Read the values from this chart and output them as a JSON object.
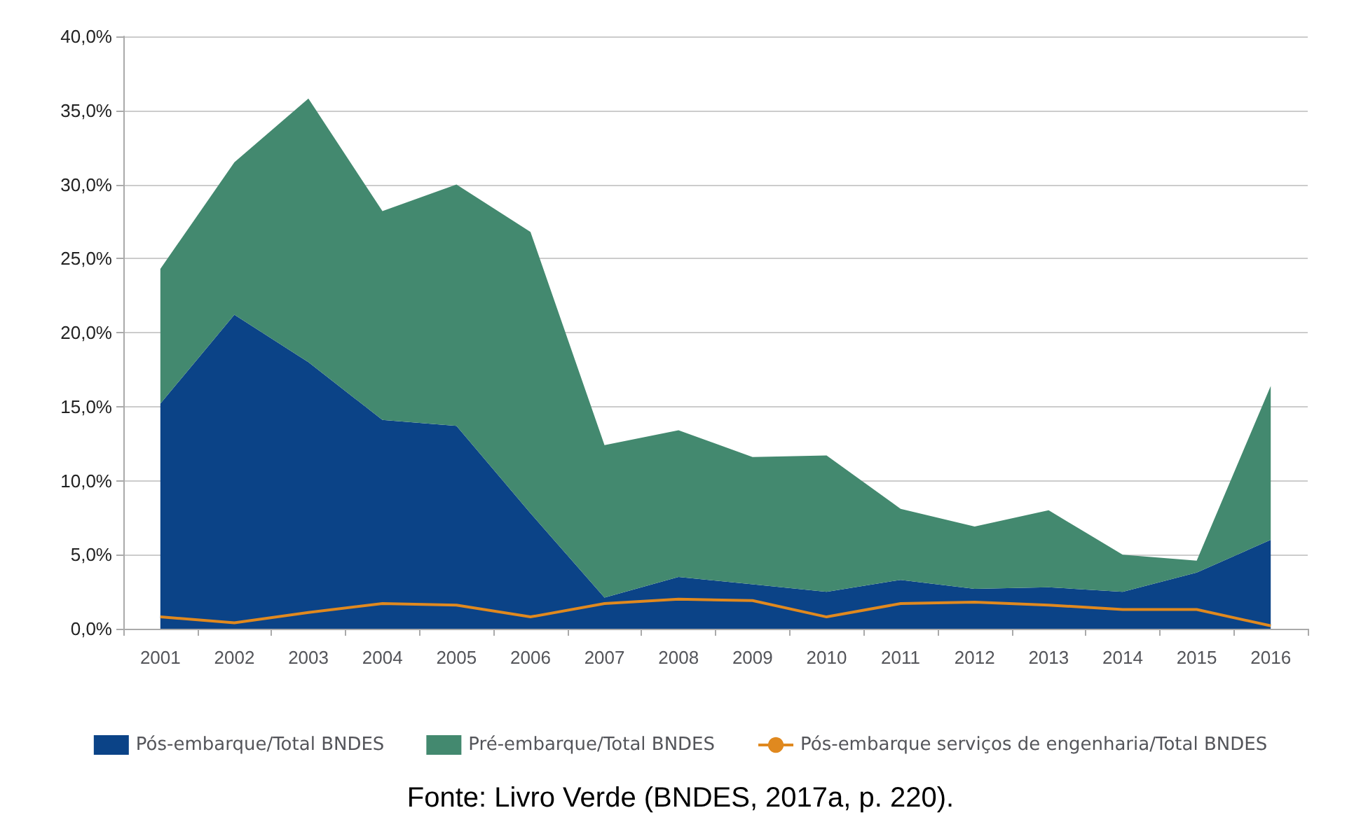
{
  "chart_data": {
    "type": "area",
    "stacked": true,
    "categories": [
      "2001",
      "2002",
      "2003",
      "2004",
      "2005",
      "2006",
      "2007",
      "2008",
      "2009",
      "2010",
      "2011",
      "2012",
      "2013",
      "2014",
      "2015",
      "2016"
    ],
    "series": [
      {
        "name": "Pós-embarque/Total BNDES",
        "color": "#0b4387",
        "values": [
          15.2,
          21.2,
          18.0,
          14.1,
          13.7,
          7.8,
          2.1,
          3.5,
          3.0,
          2.5,
          3.3,
          2.7,
          2.8,
          2.5,
          3.8,
          6.0
        ]
      },
      {
        "name": "Pré-embarque/Total BNDES",
        "color": "#43896f",
        "values": [
          9.1,
          10.3,
          17.8,
          14.1,
          16.3,
          19.0,
          10.3,
          9.9,
          8.6,
          9.2,
          4.8,
          4.2,
          5.2,
          2.5,
          0.8,
          10.4
        ]
      },
      {
        "name": "Pós-embarque serviços de engenharia/Total BNDES",
        "type": "line",
        "color": "#e0891f",
        "values": [
          0.8,
          0.4,
          1.1,
          1.7,
          1.6,
          0.8,
          1.7,
          2.0,
          1.9,
          0.8,
          1.7,
          1.8,
          1.6,
          1.3,
          1.3,
          0.2
        ]
      }
    ],
    "ylim": [
      0,
      40
    ],
    "yticks": [
      {
        "value": 0,
        "label": "0,0%"
      },
      {
        "value": 5,
        "label": "5,0%"
      },
      {
        "value": 10,
        "label": "10,0%"
      },
      {
        "value": 15,
        "label": "15,0%"
      },
      {
        "value": 20,
        "label": "20,0%"
      },
      {
        "value": 25,
        "label": "25,0%"
      },
      {
        "value": 30,
        "label": "30,0%"
      },
      {
        "value": 35,
        "label": "35,0%"
      },
      {
        "value": 40,
        "label": "40,0%"
      }
    ],
    "grid": "y",
    "legend": "bottom",
    "marker": "none",
    "line_style": "solid",
    "annotations": [
      "Fonte: Livro Verde (BNDES, 2017a, p. 220)."
    ]
  }
}
